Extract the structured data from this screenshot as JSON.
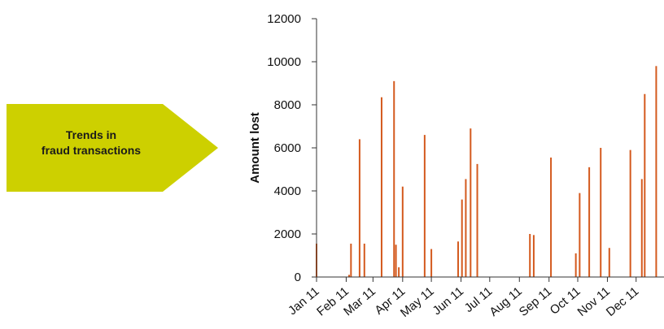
{
  "callout": {
    "text": "Trends in\nfraud transactions",
    "color": "#cdd000"
  },
  "chart_data": {
    "type": "bar",
    "title": "",
    "xlabel": "",
    "ylabel": "Amount lost",
    "ylim": [
      0,
      12000
    ],
    "yticks": [
      "0",
      "2000",
      "4000",
      "6000",
      "8000",
      "10000",
      "12000"
    ],
    "xlim": [
      "2011-01-01",
      "2011-12-31"
    ],
    "xticks": [
      {
        "date": "2011-01-01",
        "label": "Jan 11"
      },
      {
        "date": "2011-02-01",
        "label": "Feb 11"
      },
      {
        "date": "2011-03-01",
        "label": "Mar 11"
      },
      {
        "date": "2011-04-01",
        "label": "Apr 11"
      },
      {
        "date": "2011-05-01",
        "label": "May 11"
      },
      {
        "date": "2011-06-01",
        "label": "Jun 11"
      },
      {
        "date": "2011-07-01",
        "label": "Jul 11"
      },
      {
        "date": "2011-08-01",
        "label": "Aug 11"
      },
      {
        "date": "2011-09-01",
        "label": "Sep 11"
      },
      {
        "date": "2011-10-01",
        "label": "Oct 11"
      },
      {
        "date": "2011-11-01",
        "label": "Nov 11"
      },
      {
        "date": "2011-12-01",
        "label": "Dec 11"
      }
    ],
    "bar_color": "#d45a1e",
    "grid": false,
    "legend": "none",
    "points": [
      {
        "date": "2011-01-01",
        "value": 1550
      },
      {
        "date": "2011-02-04",
        "value": 100
      },
      {
        "date": "2011-02-06",
        "value": 1550
      },
      {
        "date": "2011-02-15",
        "value": 6400
      },
      {
        "date": "2011-02-20",
        "value": 1550
      },
      {
        "date": "2011-03-10",
        "value": 8350
      },
      {
        "date": "2011-03-23",
        "value": 9100
      },
      {
        "date": "2011-03-25",
        "value": 1500
      },
      {
        "date": "2011-03-28",
        "value": 450
      },
      {
        "date": "2011-04-01",
        "value": 4200
      },
      {
        "date": "2011-04-24",
        "value": 6600
      },
      {
        "date": "2011-05-01",
        "value": 1300
      },
      {
        "date": "2011-05-29",
        "value": 1650
      },
      {
        "date": "2011-06-02",
        "value": 3600
      },
      {
        "date": "2011-06-06",
        "value": 4550
      },
      {
        "date": "2011-06-11",
        "value": 6900
      },
      {
        "date": "2011-06-18",
        "value": 5250
      },
      {
        "date": "2011-08-12",
        "value": 2000
      },
      {
        "date": "2011-08-16",
        "value": 1950
      },
      {
        "date": "2011-09-03",
        "value": 5550
      },
      {
        "date": "2011-09-29",
        "value": 1100
      },
      {
        "date": "2011-10-03",
        "value": 3900
      },
      {
        "date": "2011-10-13",
        "value": 5100
      },
      {
        "date": "2011-10-25",
        "value": 6000
      },
      {
        "date": "2011-11-03",
        "value": 1350
      },
      {
        "date": "2011-11-25",
        "value": 5900
      },
      {
        "date": "2011-12-07",
        "value": 4550
      },
      {
        "date": "2011-12-10",
        "value": 8500
      },
      {
        "date": "2011-12-22",
        "value": 9800
      }
    ]
  }
}
